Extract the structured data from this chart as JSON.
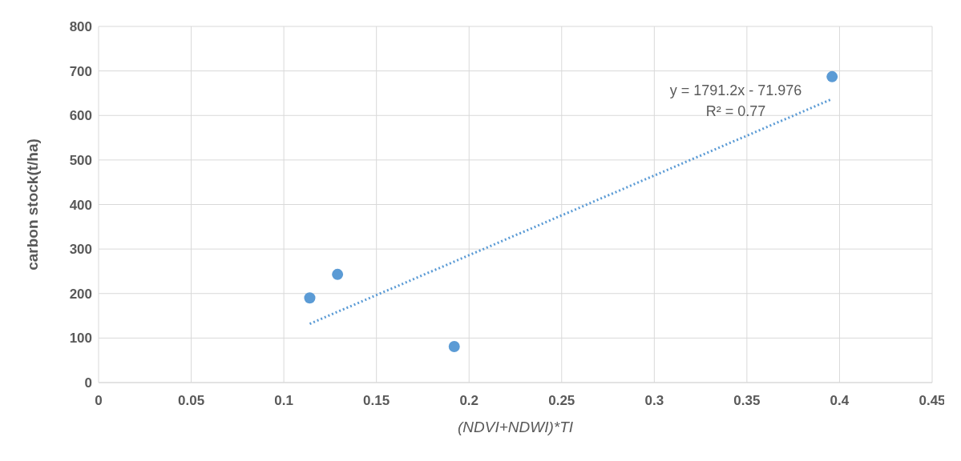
{
  "chart_data": {
    "type": "scatter",
    "xlabel": "(NDVI+NDWI)*TI",
    "ylabel": "carbon stock(t/ha)",
    "xlim": [
      0,
      0.45
    ],
    "xticks": [
      0,
      0.05,
      0.1,
      0.15,
      0.2,
      0.25,
      0.3,
      0.35,
      0.4,
      0.45
    ],
    "ylim": [
      0,
      800
    ],
    "yticks": [
      0,
      100,
      200,
      300,
      400,
      500,
      600,
      700,
      800
    ],
    "grid": true,
    "legend": false,
    "marker": "circle",
    "series": [
      {
        "color": "#5b9bd5",
        "x": [
          0.114,
          0.129,
          0.192,
          0.396
        ],
        "values": [
          190,
          243,
          81,
          687
        ]
      },
      {
        "type": "line",
        "color": "#5b9bd5",
        "line_style": "dotted",
        "marker": "none",
        "x": [
          0.114,
          0.396
        ],
        "values": [
          132,
          637
        ]
      }
    ],
    "annotations": [
      "y = 1791.2x - 71.976",
      "R² = 0.77"
    ]
  }
}
